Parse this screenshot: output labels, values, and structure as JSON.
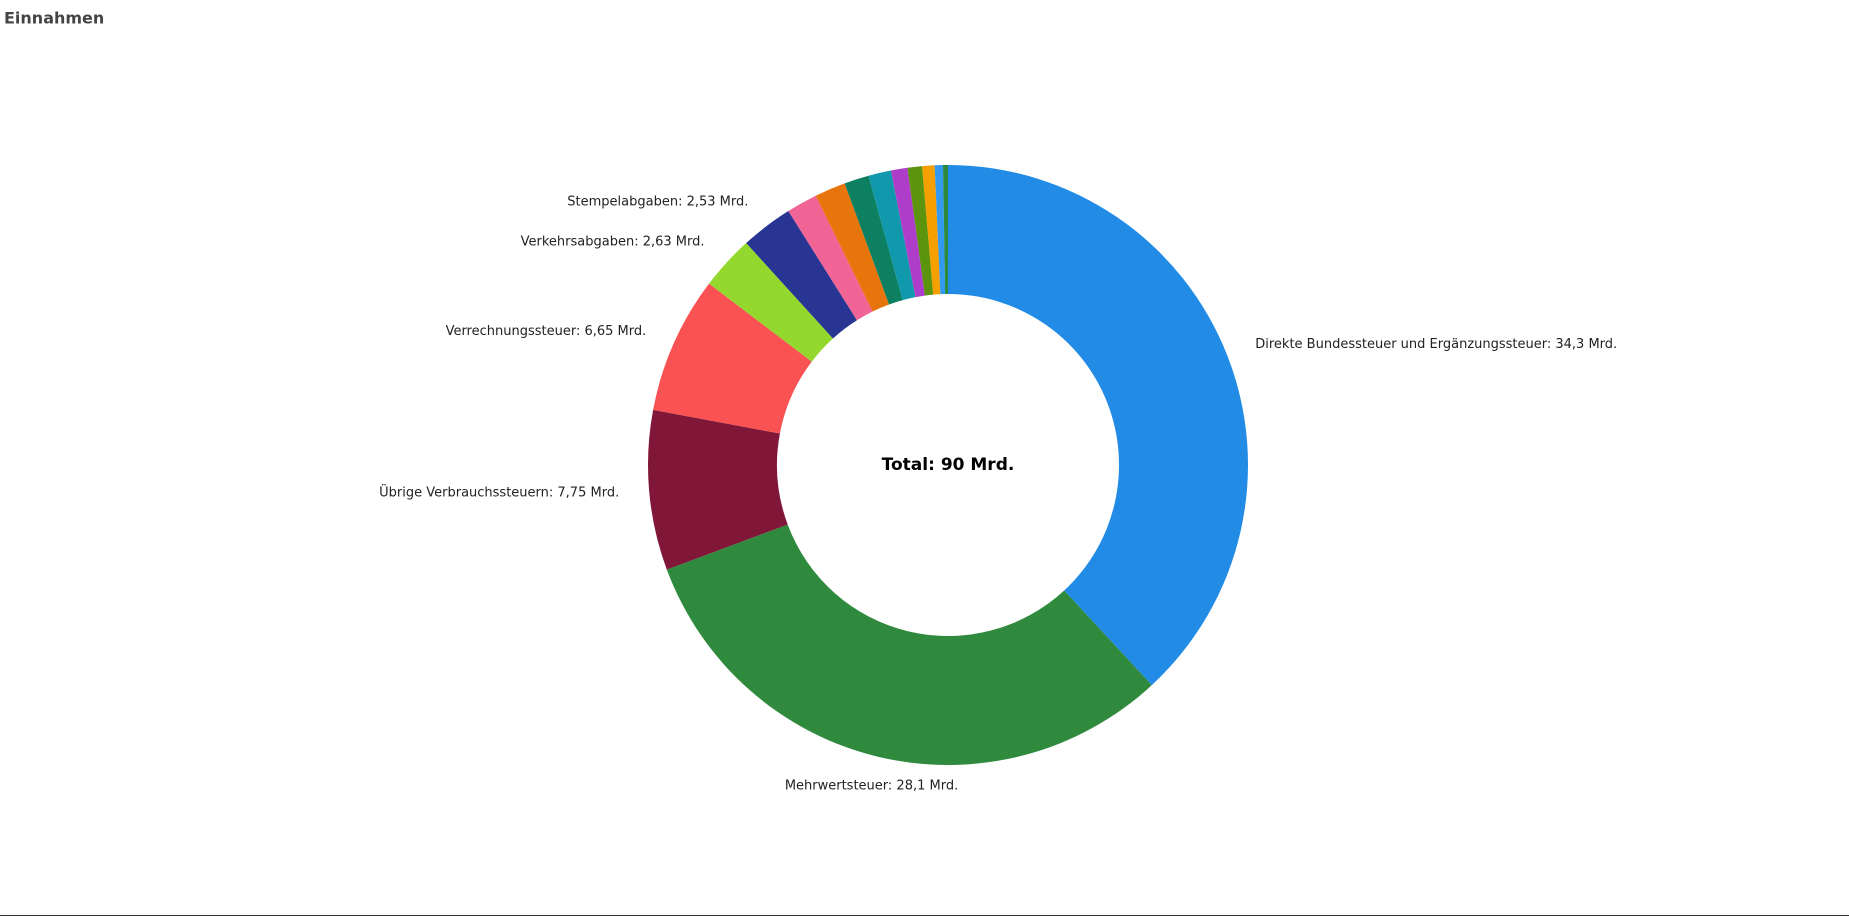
{
  "chart_data": {
    "type": "donut",
    "title": "Einnahmen",
    "center_label": "Total: 90 Mrd.",
    "values": [
      34.3,
      28.1,
      7.75,
      6.65,
      2.63,
      2.53,
      1.5,
      1.5,
      1.2,
      1.1,
      0.8,
      0.7,
      0.6,
      0.4,
      0.24
    ],
    "value_labels": [
      "Direkte Bundessteuer und Ergänzungssteuer: 34,3 Mrd.",
      "Mehrwertsteuer: 28,1 Mrd.",
      "Übrige Verbrauchssteuern: 7,75 Mrd.",
      "Verrechnungssteuer: 6,65 Mrd.",
      "Verkehrsabgaben: 2,63 Mrd.",
      "Stempelabgaben: 2,53 Mrd.",
      null,
      null,
      null,
      null,
      null,
      null,
      null,
      null,
      null
    ],
    "colors": [
      "#228be6",
      "#2f8a3e",
      "#801638",
      "#fa5252",
      "#94d82d",
      "#283593",
      "#f06595",
      "#e8740c",
      "#0c8060",
      "#1098ad",
      "#ae3ec9",
      "#5c940d",
      "#f59f00",
      "#339af0",
      "#2b8a3e"
    ]
  }
}
